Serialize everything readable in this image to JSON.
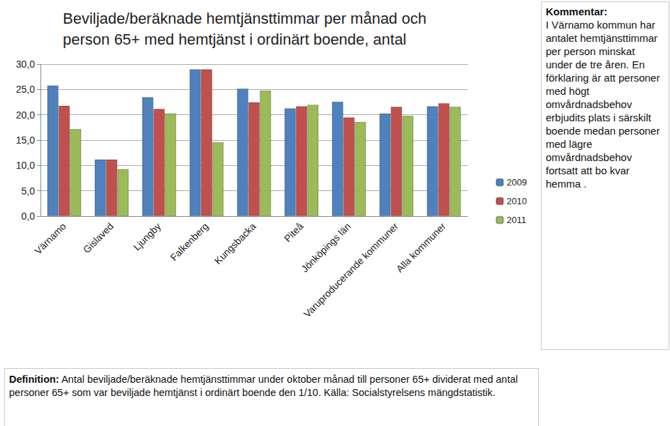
{
  "chart_data": {
    "type": "bar",
    "title": "Beviljade/beräknade hemtjänsttimmar per månad och person 65+ med hemtjänst i ordinärt boende, antal",
    "categories": [
      "Värnamo",
      "Gislaved",
      "Ljungby",
      "Falkenberg",
      "Kungsbacka",
      "Piteå",
      "Jönköpings län",
      "Varuproducerande kommuner",
      "Alla kommuner"
    ],
    "series": [
      {
        "name": "2009",
        "color": "#4f81bd",
        "values": [
          25.8,
          11.2,
          23.5,
          29.0,
          25.2,
          21.3,
          22.6,
          20.3,
          21.7
        ]
      },
      {
        "name": "2010",
        "color": "#c0504d",
        "values": [
          21.8,
          11.2,
          21.2,
          29.0,
          22.5,
          21.7,
          19.5,
          21.6,
          22.3
        ]
      },
      {
        "name": "2011",
        "color": "#9bbb59",
        "values": [
          17.2,
          9.3,
          20.3,
          14.6,
          24.8,
          22.0,
          18.6,
          19.8,
          21.6
        ]
      }
    ],
    "ylim": [
      0,
      30
    ],
    "yticks": [
      {
        "value": 0,
        "label": "0,0"
      },
      {
        "value": 5,
        "label": "5,0"
      },
      {
        "value": 10,
        "label": "10,0"
      },
      {
        "value": 15,
        "label": "15,0"
      },
      {
        "value": 20,
        "label": "20,0"
      },
      {
        "value": 25,
        "label": "25,0"
      },
      {
        "value": 30,
        "label": "30,0"
      }
    ],
    "grid": true,
    "legend": "right",
    "annotations": [
      {
        "heading": "Kommentar:",
        "text": "I Värnamo kommun har antalet hemtjänsttimmar per person minskat under de tre åren. En förklaring är att personer med högt omvårdnadsbehov erbjudits plats i särskilt boende medan personer med lägre omvårdnadsbehov fortsatt att bo kvar hemma ."
      },
      {
        "heading": "Definition:",
        "text": "Antal beviljade/beräknade hemtjänsttimmar under oktober månad till personer 65+ dividerat med antal personer 65+ som var beviljade hemtjänst i ordinärt boende den 1/10. Källa: Socialstyrelsens mängdstatistik."
      }
    ]
  }
}
